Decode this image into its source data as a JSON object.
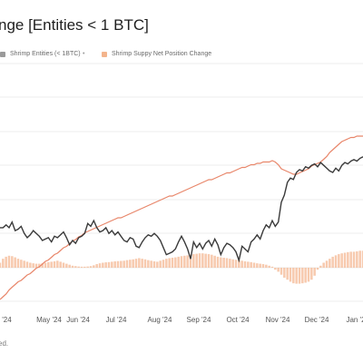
{
  "header": {
    "title": "nge [Entities < 1 BTC]"
  },
  "legend": {
    "items": [
      {
        "label": "Shrimp Entities (< 1BTC)",
        "color": "#3a3a3a"
      },
      {
        "label": "Shrimp Suppy Net Position Change",
        "color": "#f3b48c"
      }
    ],
    "separator": "•"
  },
  "footnote": {
    "text": "ed."
  },
  "chart_data": {
    "type": "line",
    "title": "nge [Entities < 1 BTC]",
    "xlabel": "",
    "ylabel": "",
    "grid": true,
    "legend_position": "top-left",
    "x_tick_labels": [
      "r '24",
      "May '24",
      "Jun '24",
      "Jul '24",
      "Aug '24",
      "Sep '24",
      "Oct '24",
      "Nov '24",
      "Dec '24",
      "Jan '2"
    ],
    "x_index_range": [
      0,
      120
    ],
    "series": [
      {
        "name": "Shrimp Entities (< 1BTC)",
        "type": "line",
        "color": "#3a3a3a",
        "values": [
          40,
          40,
          42,
          40,
          44,
          38,
          39,
          41,
          36,
          33,
          35,
          38,
          36,
          34,
          31,
          32,
          33,
          30,
          34,
          33,
          35,
          37,
          33,
          28,
          31,
          29,
          33,
          34,
          36,
          43,
          41,
          45,
          40,
          37,
          38,
          40,
          36,
          38,
          35,
          37,
          34,
          31,
          30,
          33,
          32,
          27,
          26,
          30,
          33,
          35,
          34,
          36,
          34,
          31,
          26,
          21,
          22,
          23,
          25,
          30,
          34,
          30,
          25,
          18,
          30,
          26,
          29,
          25,
          29,
          31,
          27,
          32,
          28,
          21,
          26,
          29,
          28,
          26,
          23,
          17,
          27,
          25,
          23,
          30,
          32,
          35,
          32,
          38,
          42,
          40,
          45,
          41,
          44,
          58,
          63,
          72,
          75,
          74,
          79,
          81,
          80,
          83,
          82,
          84,
          85,
          83,
          86,
          84,
          82,
          80,
          79,
          82,
          80,
          84,
          86,
          85,
          87,
          88,
          87,
          89,
          90
        ]
      },
      {
        "name": "Shrimp Suppy Net Position Change",
        "type": "line",
        "color": "#e8866a",
        "values": [
          -10,
          -8,
          -6,
          -3,
          -1,
          1,
          3,
          4,
          6,
          8,
          9,
          11,
          13,
          14,
          16,
          18,
          19,
          21,
          23,
          24,
          26,
          28,
          29,
          31,
          33,
          34,
          36,
          37,
          39,
          40,
          41,
          42,
          43,
          44,
          45,
          46,
          47,
          48,
          49,
          50,
          50,
          51,
          52,
          53,
          54,
          55,
          56,
          57,
          58,
          59,
          60,
          61,
          62,
          63,
          64,
          65,
          66,
          66,
          67,
          68,
          69,
          70,
          71,
          72,
          73,
          74,
          75,
          76,
          77,
          78,
          78,
          79,
          80,
          81,
          82,
          83,
          83,
          84,
          85,
          86,
          87,
          87,
          88,
          89,
          89,
          90,
          90,
          91,
          91,
          91,
          92,
          91,
          89,
          86,
          85,
          84,
          83,
          82,
          82,
          83,
          84,
          85,
          86,
          88,
          89,
          90,
          91,
          93,
          95,
          98,
          100,
          102,
          104,
          106,
          107,
          108,
          109,
          109,
          110,
          110,
          110
        ]
      },
      {
        "name": "Shrimp Suppy Net Position Change",
        "type": "bar",
        "color": "#f3b48c",
        "values": [
          0.25,
          0.45,
          0.55,
          0.6,
          0.58,
          0.52,
          0.45,
          0.4,
          0.35,
          0.3,
          0.25,
          0.22,
          0.2,
          0.2,
          0.22,
          0.25,
          0.28,
          0.3,
          0.32,
          0.35,
          0.3,
          0.25,
          0.2,
          0.15,
          0.1,
          0.08,
          0.06,
          0.05,
          0.05,
          0.06,
          0.08,
          0.12,
          0.18,
          0.22,
          0.25,
          0.27,
          0.28,
          0.3,
          0.32,
          0.33,
          0.34,
          0.35,
          0.38,
          0.4,
          0.42,
          0.45,
          0.48,
          0.45,
          0.42,
          0.38,
          0.35,
          0.32,
          0.3,
          0.35,
          0.4,
          0.45,
          0.48,
          0.5,
          0.52,
          0.55,
          0.58,
          0.6,
          0.62,
          0.65,
          0.68,
          0.7,
          0.72,
          0.72,
          0.7,
          0.68,
          0.65,
          0.6,
          0.55,
          0.52,
          0.5,
          0.48,
          0.45,
          0.42,
          0.4,
          0.38,
          0.35,
          0.32,
          0.3,
          0.28,
          0.25,
          0.22,
          0.2,
          0.18,
          0.15,
          0.1,
          0.05,
          -0.1,
          -0.2,
          -0.35,
          -0.5,
          -0.6,
          -0.7,
          -0.78,
          -0.8,
          -0.8,
          -0.78,
          -0.75,
          -0.7,
          -0.6,
          -0.4,
          -0.1,
          0.1,
          0.25,
          0.35,
          0.45,
          0.55,
          0.62,
          0.68,
          0.72,
          0.75,
          0.78,
          0.8,
          0.8,
          0.82,
          0.85,
          0.85
        ]
      }
    ]
  }
}
